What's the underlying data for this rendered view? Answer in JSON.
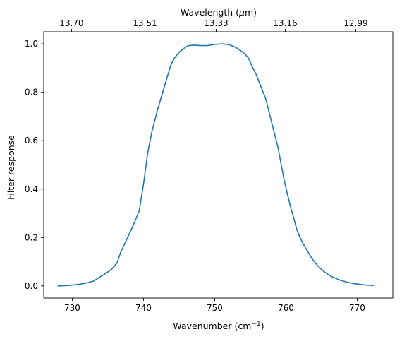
{
  "chart_data": {
    "type": "line",
    "title": "",
    "xlabel": "Wavenumber (cm",
    "xlabel_superscript": "−1",
    "xlabel_suffix": ")",
    "ylabel": "Filter response",
    "top_xlabel": "Wavelength (",
    "top_xlabel_mu": "μ",
    "top_xlabel_suffix": "m)",
    "xlim": [
      726,
      775
    ],
    "ylim": [
      -0.05,
      1.05
    ],
    "grid": false,
    "xticks": [
      730,
      740,
      750,
      760,
      770
    ],
    "xtick_labels": [
      "730",
      "740",
      "750",
      "760",
      "770"
    ],
    "yticks": [
      0.0,
      0.2,
      0.4,
      0.6,
      0.8,
      1.0
    ],
    "ytick_labels": [
      "0.0",
      "0.2",
      "0.4",
      "0.6",
      "0.8",
      "1.0"
    ],
    "top_xticks": [
      729.9,
      740.2,
      750.2,
      759.9,
      769.8
    ],
    "top_xtick_labels": [
      "13.70",
      "13.51",
      "13.33",
      "13.16",
      "12.99"
    ],
    "line_color": "#1f77b4",
    "series": [
      {
        "x": [
          728.0,
          729.5,
          731.0,
          732.0,
          733.0,
          733.5,
          734.5,
          735.5,
          736.3,
          736.8,
          737.3,
          738.0,
          738.7,
          739.4,
          740.0,
          740.6,
          741.2,
          742.0,
          743.0,
          743.8,
          744.3,
          745.0,
          745.6,
          746.2,
          747.0,
          748.0,
          749.0,
          750.0,
          751.0,
          752.0,
          753.0,
          754.0,
          754.7,
          755.2,
          755.8,
          756.4,
          757.2,
          757.7,
          758.3,
          758.9,
          759.4,
          759.8,
          760.2,
          760.7,
          761.1,
          761.5,
          761.9,
          762.4,
          763.0,
          763.6,
          764.4,
          765.3,
          766.3,
          767.5,
          768.5,
          769.5,
          770.5,
          771.5,
          772.3
        ],
        "y": [
          0.0,
          0.002,
          0.007,
          0.012,
          0.02,
          0.03,
          0.048,
          0.068,
          0.095,
          0.14,
          0.17,
          0.215,
          0.26,
          0.31,
          0.42,
          0.55,
          0.64,
          0.73,
          0.83,
          0.91,
          0.94,
          0.965,
          0.98,
          0.992,
          0.995,
          0.993,
          0.993,
          0.998,
          1.0,
          0.997,
          0.985,
          0.965,
          0.943,
          0.91,
          0.875,
          0.83,
          0.77,
          0.71,
          0.64,
          0.57,
          0.49,
          0.43,
          0.38,
          0.32,
          0.28,
          0.235,
          0.205,
          0.175,
          0.145,
          0.115,
          0.085,
          0.06,
          0.04,
          0.025,
          0.016,
          0.01,
          0.006,
          0.003,
          0.002
        ]
      }
    ]
  }
}
